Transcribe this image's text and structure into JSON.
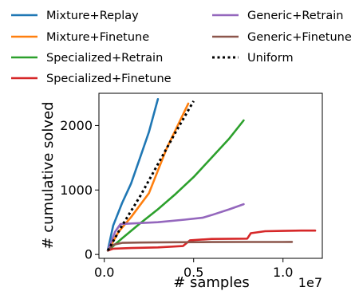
{
  "chart_data": {
    "type": "line",
    "title": "",
    "xlabel": "# samples",
    "ylabel": "# cumulative solved",
    "x_scale_label": "1e7",
    "xlim": [
      -0.03,
      1.22
    ],
    "ylim": [
      -60,
      2500
    ],
    "xticks": [
      {
        "value": 0.0,
        "label": "0.0"
      },
      {
        "value": 0.5,
        "label": "0.5"
      },
      {
        "value": 1.0,
        "label": "1.0"
      }
    ],
    "yticks": [
      {
        "value": 0,
        "label": "0"
      },
      {
        "value": 1000,
        "label": "1000"
      },
      {
        "value": 2000,
        "label": "2000"
      }
    ],
    "grid": false,
    "legend_placement": "top, above plot",
    "series": [
      {
        "name": "Mixture+Replay",
        "color": "#1f77b4",
        "dash": "solid",
        "x": [
          0.02,
          0.05,
          0.1,
          0.15,
          0.2,
          0.25,
          0.3
        ],
        "y": [
          70,
          450,
          800,
          1100,
          1500,
          1900,
          2410
        ]
      },
      {
        "name": "Mixture+Finetune",
        "color": "#ff7f0e",
        "dash": "solid",
        "x": [
          0.02,
          0.08,
          0.15,
          0.25,
          0.35,
          0.47
        ],
        "y": [
          60,
          350,
          580,
          950,
          1650,
          2340
        ]
      },
      {
        "name": "Specialized+Retrain",
        "color": "#2ca02c",
        "dash": "solid",
        "x": [
          0.02,
          0.1,
          0.2,
          0.3,
          0.4,
          0.5,
          0.6,
          0.7,
          0.78
        ],
        "y": [
          60,
          250,
          480,
          700,
          940,
          1200,
          1500,
          1800,
          2080
        ]
      },
      {
        "name": "Specialized+Finetune",
        "color": "#d62728",
        "dash": "solid",
        "x": [
          0.02,
          0.05,
          0.15,
          0.3,
          0.44,
          0.48,
          0.6,
          0.8,
          0.82,
          0.9,
          1.0,
          1.1,
          1.18
        ],
        "y": [
          60,
          90,
          100,
          110,
          130,
          220,
          240,
          245,
          330,
          360,
          365,
          370,
          370
        ]
      },
      {
        "name": "Generic+Retrain",
        "color": "#9467bd",
        "dash": "solid",
        "x": [
          0.02,
          0.06,
          0.09,
          0.15,
          0.3,
          0.45,
          0.55,
          0.6,
          0.7,
          0.78
        ],
        "y": [
          60,
          350,
          470,
          480,
          500,
          540,
          570,
          610,
          700,
          780
        ]
      },
      {
        "name": "Generic+Finetune",
        "color": "#8c564b",
        "dash": "solid",
        "x": [
          0.02,
          0.05,
          0.1,
          0.2,
          0.4,
          0.6,
          0.8,
          1.0,
          1.05
        ],
        "y": [
          60,
          150,
          180,
          185,
          190,
          192,
          193,
          194,
          195
        ]
      },
      {
        "name": "Uniform",
        "color": "#000000",
        "dash": "dotted",
        "x": [
          0.02,
          0.1,
          0.2,
          0.3,
          0.4,
          0.5
        ],
        "y": [
          60,
          450,
          900,
          1400,
          1900,
          2380
        ]
      }
    ]
  }
}
